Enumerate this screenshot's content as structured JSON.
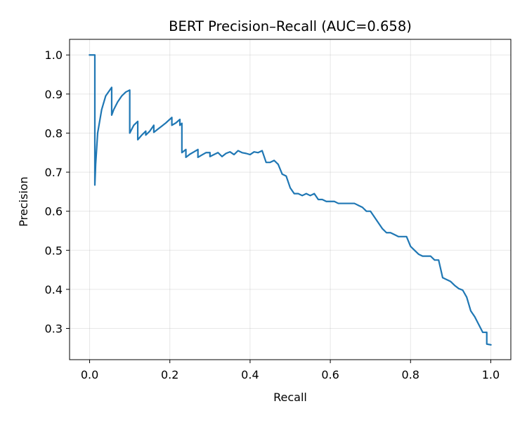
{
  "chart_data": {
    "type": "line",
    "title": "BERT Precision–Recall (AUC=0.658)",
    "xlabel": "Recall",
    "ylabel": "Precision",
    "xlim": [
      -0.05,
      1.05
    ],
    "ylim": [
      0.22,
      1.04
    ],
    "x_ticks": [
      0.0,
      0.2,
      0.4,
      0.6,
      0.8,
      1.0
    ],
    "x_tick_labels": [
      "0.0",
      "0.2",
      "0.4",
      "0.6",
      "0.8",
      "1.0"
    ],
    "y_ticks": [
      0.3,
      0.4,
      0.5,
      0.6,
      0.7,
      0.8,
      0.9,
      1.0
    ],
    "y_tick_labels": [
      "0.3",
      "0.4",
      "0.5",
      "0.6",
      "0.7",
      "0.8",
      "0.9",
      "1.0"
    ],
    "grid": true,
    "line_color": "#1f77b4",
    "series": [
      {
        "x": [
          0.0,
          0.013,
          0.013,
          0.015,
          0.02,
          0.03,
          0.04,
          0.055,
          0.055,
          0.06,
          0.07,
          0.08,
          0.09,
          0.1,
          0.1,
          0.105,
          0.11,
          0.12,
          0.12,
          0.13,
          0.14,
          0.14,
          0.15,
          0.16,
          0.16,
          0.17,
          0.18,
          0.19,
          0.205,
          0.205,
          0.215,
          0.225,
          0.225,
          0.23,
          0.23,
          0.235,
          0.24,
          0.24,
          0.245,
          0.25,
          0.26,
          0.27,
          0.27,
          0.28,
          0.29,
          0.3,
          0.3,
          0.31,
          0.32,
          0.33,
          0.34,
          0.35,
          0.36,
          0.37,
          0.38,
          0.39,
          0.4,
          0.41,
          0.42,
          0.43,
          0.44,
          0.45,
          0.46,
          0.47,
          0.48,
          0.49,
          0.5,
          0.51,
          0.52,
          0.53,
          0.54,
          0.55,
          0.56,
          0.57,
          0.58,
          0.59,
          0.6,
          0.61,
          0.62,
          0.63,
          0.64,
          0.65,
          0.66,
          0.67,
          0.68,
          0.69,
          0.7,
          0.71,
          0.72,
          0.73,
          0.74,
          0.75,
          0.76,
          0.77,
          0.78,
          0.79,
          0.8,
          0.81,
          0.82,
          0.83,
          0.84,
          0.85,
          0.86,
          0.87,
          0.88,
          0.89,
          0.9,
          0.91,
          0.92,
          0.93,
          0.94,
          0.95,
          0.96,
          0.97,
          0.98,
          0.99,
          0.99,
          1.0
        ],
        "y": [
          1.0,
          1.0,
          0.667,
          0.72,
          0.8,
          0.86,
          0.895,
          0.917,
          0.846,
          0.86,
          0.88,
          0.895,
          0.905,
          0.91,
          0.8,
          0.81,
          0.82,
          0.83,
          0.783,
          0.795,
          0.805,
          0.795,
          0.805,
          0.82,
          0.802,
          0.81,
          0.818,
          0.826,
          0.84,
          0.82,
          0.826,
          0.835,
          0.82,
          0.825,
          0.75,
          0.754,
          0.758,
          0.738,
          0.742,
          0.746,
          0.752,
          0.758,
          0.738,
          0.744,
          0.75,
          0.75,
          0.74,
          0.745,
          0.75,
          0.74,
          0.748,
          0.752,
          0.745,
          0.755,
          0.75,
          0.748,
          0.745,
          0.752,
          0.75,
          0.755,
          0.725,
          0.725,
          0.73,
          0.72,
          0.695,
          0.69,
          0.66,
          0.645,
          0.645,
          0.64,
          0.645,
          0.64,
          0.645,
          0.63,
          0.63,
          0.625,
          0.625,
          0.625,
          0.62,
          0.62,
          0.62,
          0.62,
          0.62,
          0.615,
          0.61,
          0.6,
          0.6,
          0.585,
          0.57,
          0.555,
          0.545,
          0.545,
          0.54,
          0.535,
          0.535,
          0.535,
          0.51,
          0.5,
          0.49,
          0.485,
          0.485,
          0.485,
          0.475,
          0.475,
          0.43,
          0.425,
          0.42,
          0.41,
          0.402,
          0.398,
          0.38,
          0.345,
          0.33,
          0.31,
          0.29,
          0.29,
          0.26,
          0.258
        ]
      }
    ]
  }
}
